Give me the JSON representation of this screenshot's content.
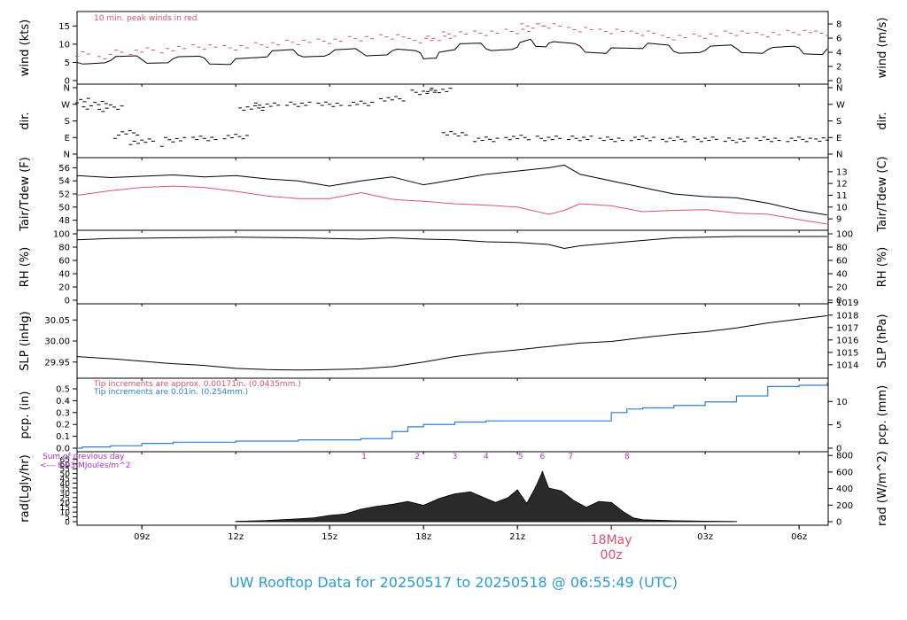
{
  "title": "UW Rooftop Data for 20250517  to  20250518 @ 06:55:49  (UTC)",
  "colors": {
    "title": "#2b9bd8",
    "dew": "#df536b",
    "pcp": "#2e7fd6",
    "rad_note": "#b030d8",
    "date": "#df536b",
    "trace": "#000000"
  },
  "time_axis": {
    "x_start_hours": 6.93,
    "x_end_hours": 30.93,
    "ticks": [
      {
        "hours": 9,
        "label": "09z"
      },
      {
        "hours": 12,
        "label": "12z"
      },
      {
        "hours": 15,
        "label": "15z"
      },
      {
        "hours": 18,
        "label": "18z"
      },
      {
        "hours": 21,
        "label": "21z"
      },
      {
        "hours": 27,
        "label": "03z"
      },
      {
        "hours": 30,
        "label": "06z"
      }
    ],
    "date_label_day": "18May",
    "date_label_hour": "00z",
    "date_label_hours": 24
  },
  "chart_data": [
    {
      "type": "line",
      "panel": "wind",
      "ylabel_left": "wind (kts)",
      "ylabel_right": "wind (m/s)",
      "ylim": [
        0,
        18
      ],
      "left_ticks": [
        "0",
        "5",
        "10",
        "15"
      ],
      "right_ticks": [
        "0",
        "2",
        "4",
        "6",
        "8"
      ],
      "note": "10 min. peak winds in red",
      "series": [
        {
          "name": "wind",
          "x": [
            6.93,
            8,
            9,
            10,
            11,
            12,
            13,
            14,
            15,
            16,
            17,
            17.9,
            18.5,
            19,
            20,
            21,
            21.5,
            22,
            23,
            24,
            25,
            26,
            27,
            28,
            29,
            30,
            30.9
          ],
          "y": [
            5,
            5.5,
            5.8,
            6,
            6.2,
            6,
            6.5,
            7,
            7.3,
            7.8,
            8.2,
            7.6,
            7.8,
            8.5,
            8.7,
            9.2,
            10.5,
            10.3,
            9.5,
            9,
            8.8,
            8,
            8.3,
            8.8,
            8.5,
            9,
            8.7
          ]
        },
        {
          "name": "peak",
          "x": [
            6.93,
            8,
            9,
            10,
            11,
            12,
            13,
            14,
            15,
            16,
            17,
            17.9,
            18.5,
            19,
            20,
            21,
            21.5,
            22,
            23,
            24,
            25,
            26,
            27,
            28,
            29,
            30,
            30.9
          ],
          "y": [
            7.3,
            7.8,
            8.4,
            8.8,
            9.2,
            9,
            9.8,
            10.5,
            10.8,
            11.5,
            12,
            11,
            11.6,
            12.8,
            13,
            13.5,
            15,
            15,
            14,
            13.5,
            13,
            11.8,
            12.2,
            13,
            12.6,
            13.2,
            13
          ]
        }
      ]
    },
    {
      "type": "scatter",
      "panel": "dir",
      "ylabel_left": "dir.",
      "ylabel_right": "dir.",
      "ylim": [
        0,
        360
      ],
      "left_ticks": [
        "N",
        "E",
        "S",
        "W",
        "N"
      ],
      "right_ticks": [
        "N",
        "E",
        "S",
        "W",
        "N"
      ],
      "series": [
        {
          "name": "direction",
          "x": [
            6.93,
            7.5,
            8,
            8.5,
            9,
            10,
            11,
            12,
            12.5,
            13,
            14,
            15,
            16,
            17,
            18,
            18.5,
            19,
            20,
            21,
            22,
            23,
            24,
            25,
            26,
            27,
            28,
            29,
            30,
            30.9
          ],
          "y": [
            290,
            280,
            255,
            115,
            70,
            78,
            85,
            95,
            250,
            265,
            270,
            270,
            275,
            300,
            335,
            345,
            110,
            80,
            90,
            85,
            85,
            80,
            85,
            80,
            80,
            75,
            80,
            80,
            82
          ]
        }
      ]
    },
    {
      "type": "line",
      "panel": "temp",
      "ylabel_left": "Tair/Tdew (F)",
      "ylabel_right": "Tair/Tdew (C)",
      "ylim": [
        47,
        57
      ],
      "left_ticks": [
        "48",
        "50",
        "52",
        "54",
        "56"
      ],
      "right_ticks": [
        "9",
        "10",
        "11",
        "12",
        "13"
      ],
      "series": [
        {
          "name": "Tair",
          "x": [
            6.93,
            8,
            9,
            10,
            11,
            12,
            13,
            14,
            15,
            16,
            17,
            17.5,
            18,
            19,
            20,
            21,
            22,
            22.5,
            23,
            24,
            25,
            26,
            27,
            28,
            29,
            30,
            30.9
          ],
          "y": [
            54.8,
            54.5,
            54.7,
            54.9,
            54.6,
            54.8,
            54.3,
            54,
            53.2,
            54,
            54.6,
            54,
            53.4,
            54.2,
            55,
            55.5,
            56,
            56.4,
            55,
            54,
            53,
            52,
            51.6,
            51.4,
            50.6,
            49.5,
            48.8
          ]
        },
        {
          "name": "Tdew",
          "x": [
            6.93,
            8,
            9,
            10,
            11,
            12,
            13,
            14,
            15,
            16,
            17,
            17.5,
            18,
            19,
            20,
            21,
            22,
            22.5,
            23,
            24,
            25,
            26,
            27,
            28,
            29,
            30,
            30.9
          ],
          "y": [
            51.8,
            52.5,
            53,
            53.2,
            53,
            52.4,
            51.7,
            51.3,
            51.3,
            52.2,
            51.2,
            51,
            50.9,
            50.5,
            50.3,
            50,
            48.9,
            49.5,
            50.5,
            50.2,
            49.3,
            49.5,
            49.6,
            49.1,
            48.9,
            48.1,
            47.4
          ]
        }
      ]
    },
    {
      "type": "line",
      "panel": "rh",
      "ylabel_left": "RH (%)",
      "ylabel_right": "RH (%)",
      "ylim": [
        0,
        100
      ],
      "left_ticks": [
        "0",
        "20",
        "40",
        "60",
        "80",
        "100"
      ],
      "right_ticks": [
        "0",
        "20",
        "40",
        "60",
        "80",
        "100"
      ],
      "series": [
        {
          "name": "RH",
          "x": [
            6.93,
            8,
            10,
            12,
            14,
            16,
            17,
            18,
            19,
            20,
            21,
            22,
            22.5,
            23,
            24,
            25,
            26,
            28,
            30,
            30.9
          ],
          "y": [
            91,
            93,
            94,
            95,
            94,
            92,
            94,
            92,
            91,
            88,
            87,
            84,
            78,
            82,
            86,
            90,
            94,
            96,
            96,
            96
          ]
        }
      ]
    },
    {
      "type": "line",
      "panel": "slp",
      "ylabel_left": "SLP (inHg)",
      "ylabel_right": "SLP (hPa)",
      "ylim": [
        29.92,
        30.08
      ],
      "left_ticks": [
        "29.95",
        "30.00",
        "30.05"
      ],
      "right_ticks": [
        "1014",
        "1015",
        "1016",
        "1017",
        "1018",
        "1019"
      ],
      "series": [
        {
          "name": "SLP",
          "x": [
            6.93,
            8,
            9,
            10,
            11,
            12,
            13,
            14,
            15,
            16,
            17,
            18,
            19,
            20,
            21,
            22,
            23,
            24,
            25,
            26,
            27,
            28,
            29,
            30,
            30.9
          ],
          "y": [
            29.963,
            29.958,
            29.952,
            29.946,
            29.942,
            29.935,
            29.932,
            29.931,
            29.932,
            29.934,
            29.939,
            29.95,
            29.963,
            29.972,
            29.979,
            29.987,
            29.995,
            29.999,
            30.008,
            30.016,
            30.022,
            30.031,
            30.043,
            30.052,
            30.06
          ]
        }
      ]
    },
    {
      "type": "line",
      "panel": "pcp",
      "ylabel_left": "pcp. (in)",
      "ylabel_right": "pcp. (mm)",
      "ylim": [
        0,
        0.56
      ],
      "left_ticks": [
        "0.0",
        "0.1",
        "0.2",
        "0.3",
        "0.4",
        "0.5"
      ],
      "right_ticks": [
        "0",
        "5",
        "10"
      ],
      "note_red": "Tip increments are approx. 0.00171in. (0.0435mm.)",
      "note_blue": "Tip increments are 0.01in. (0.254mm.)",
      "series": [
        {
          "name": "precip",
          "x": [
            6.93,
            7.1,
            8,
            9,
            10,
            12,
            14,
            16,
            16.6,
            17,
            17.5,
            18,
            19,
            20,
            21,
            22,
            23,
            24,
            24.5,
            25,
            26,
            27,
            28,
            29,
            30,
            30.9
          ],
          "y": [
            0,
            0.01,
            0.02,
            0.04,
            0.05,
            0.06,
            0.07,
            0.08,
            0.08,
            0.14,
            0.18,
            0.2,
            0.22,
            0.23,
            0.23,
            0.23,
            0.23,
            0.3,
            0.33,
            0.34,
            0.36,
            0.39,
            0.44,
            0.52,
            0.53,
            0.55
          ]
        }
      ]
    },
    {
      "type": "area",
      "panel": "rad",
      "ylabel_left": "rad(Lgly/hr)",
      "ylabel_right": "rad (W/m^2)",
      "ylim": [
        0,
        69
      ],
      "left_ticks": [
        "0",
        "5",
        "10",
        "15",
        "20",
        "25",
        "30",
        "35",
        "40",
        "45",
        "50",
        "55",
        "60",
        "65"
      ],
      "right_ticks": [
        "0",
        "200",
        "400",
        "600",
        "800"
      ],
      "note_line1": "Sum of previous day",
      "note_line2": "<--- 8.93 MJoules/m^2",
      "markers": [
        {
          "hours": 16.1,
          "label": "1"
        },
        {
          "hours": 17.8,
          "label": "2"
        },
        {
          "hours": 19,
          "label": "3"
        },
        {
          "hours": 20,
          "label": "4"
        },
        {
          "hours": 21.1,
          "label": "5"
        },
        {
          "hours": 21.8,
          "label": "6"
        },
        {
          "hours": 22.7,
          "label": "7"
        },
        {
          "hours": 24.5,
          "label": "8"
        }
      ],
      "series": [
        {
          "name": "radiation",
          "x": [
            12,
            13,
            14,
            14.5,
            15,
            15.5,
            16,
            16.5,
            17,
            17.5,
            18,
            18.5,
            19,
            19.5,
            20,
            20.3,
            20.7,
            21,
            21.3,
            21.6,
            21.8,
            22,
            22.4,
            22.8,
            23.2,
            23.6,
            24,
            24.4,
            24.7,
            25,
            26,
            27,
            28
          ],
          "y": [
            0.3,
            1.2,
            3,
            4,
            6.5,
            8,
            13,
            16,
            18,
            21,
            17,
            24,
            29,
            31,
            24,
            20,
            25,
            33,
            19,
            37,
            52,
            35,
            32,
            22,
            15,
            21,
            20,
            10,
            4,
            2,
            1,
            0.5,
            0.2
          ]
        }
      ]
    }
  ]
}
